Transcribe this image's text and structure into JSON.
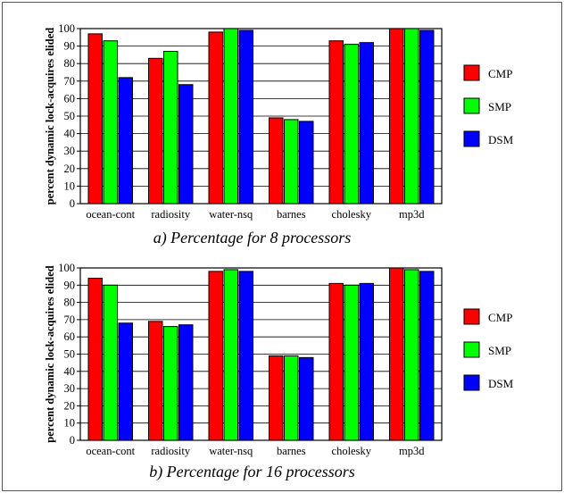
{
  "chart_data": [
    {
      "type": "bar",
      "caption": "a) Percentage for 8 processors",
      "ylabel": "percent dynamic lock-acquires elided",
      "ylim": [
        0,
        100
      ],
      "yticks": [
        0,
        10,
        20,
        30,
        40,
        50,
        60,
        70,
        80,
        90,
        100
      ],
      "grid": true,
      "legend": "right",
      "categories": [
        "ocean-cont",
        "radiosity",
        "water-nsq",
        "barnes",
        "cholesky",
        "mp3d"
      ],
      "series": [
        {
          "name": "CMP",
          "color": "#ff0000",
          "values": [
            97,
            83,
            98,
            49,
            93,
            100
          ]
        },
        {
          "name": "SMP",
          "color": "#00ff00",
          "values": [
            93,
            87,
            100,
            48,
            91,
            100
          ]
        },
        {
          "name": "DSM",
          "color": "#0000ff",
          "values": [
            72,
            68,
            99,
            47,
            92,
            99
          ]
        }
      ]
    },
    {
      "type": "bar",
      "caption": "b) Percentage for 16 processors",
      "ylabel": "percent dynamic lock-acquires elided",
      "ylim": [
        0,
        100
      ],
      "yticks": [
        0,
        10,
        20,
        30,
        40,
        50,
        60,
        70,
        80,
        90,
        100
      ],
      "grid": true,
      "legend": "right",
      "categories": [
        "ocean-cont",
        "radiosity",
        "water-nsq",
        "barnes",
        "cholesky",
        "mp3d"
      ],
      "series": [
        {
          "name": "CMP",
          "color": "#ff0000",
          "values": [
            94,
            69,
            98,
            49,
            91,
            100
          ]
        },
        {
          "name": "SMP",
          "color": "#00ff00",
          "values": [
            90,
            66,
            99,
            49,
            90,
            99
          ]
        },
        {
          "name": "DSM",
          "color": "#0000ff",
          "values": [
            68,
            67,
            98,
            48,
            91,
            98
          ]
        }
      ]
    }
  ]
}
